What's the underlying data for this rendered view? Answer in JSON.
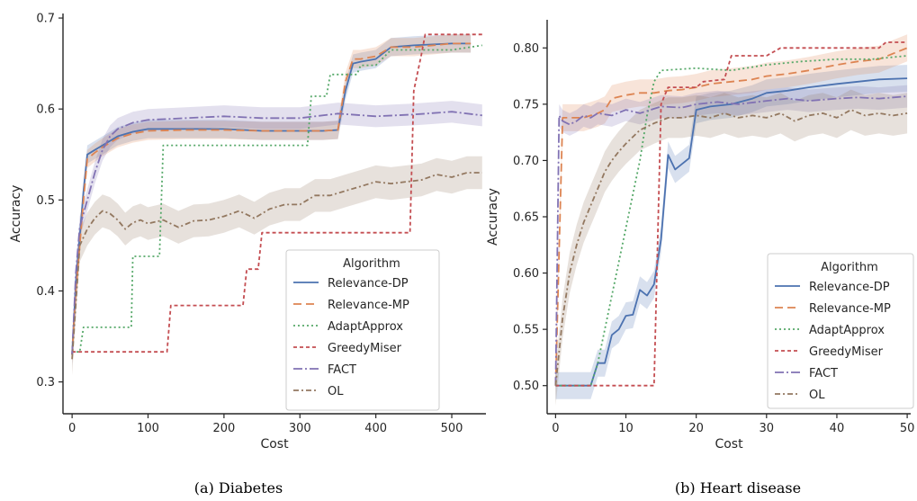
{
  "chart_data": [
    {
      "type": "line",
      "caption": "(a) Diabetes",
      "xlabel": "Cost",
      "ylabel": "Accuracy",
      "xlim": [
        -12,
        545
      ],
      "ylim": [
        0.265,
        0.705
      ],
      "xticks": [
        0,
        100,
        200,
        300,
        400,
        500
      ],
      "yticks": [
        0.3,
        0.4,
        0.5,
        0.6,
        0.7
      ],
      "xtick_labels": [
        "0",
        "100",
        "200",
        "300",
        "400",
        "500"
      ],
      "ytick_labels": [
        "0.3",
        "0.4",
        "0.5",
        "0.6",
        "0.7"
      ],
      "legend": {
        "title": "Algorithm",
        "position": "lower-right"
      },
      "series": [
        {
          "name": "Relevance-DP",
          "color": "#4c72b0",
          "dash": "",
          "x": [
            0,
            5,
            10,
            15,
            20,
            30,
            40,
            50,
            60,
            80,
            100,
            150,
            200,
            250,
            300,
            330,
            350,
            360,
            370,
            380,
            400,
            420,
            450,
            500,
            525
          ],
          "y": [
            0.33,
            0.41,
            0.46,
            0.51,
            0.55,
            0.555,
            0.56,
            0.565,
            0.57,
            0.575,
            0.578,
            0.578,
            0.578,
            0.576,
            0.576,
            0.576,
            0.577,
            0.62,
            0.65,
            0.652,
            0.655,
            0.668,
            0.67,
            0.672,
            0.672
          ],
          "band": 0.01
        },
        {
          "name": "Relevance-MP",
          "color": "#dd8452",
          "dash": "9,5",
          "x": [
            0,
            5,
            10,
            15,
            20,
            30,
            40,
            50,
            60,
            80,
            100,
            150,
            200,
            250,
            300,
            330,
            350,
            360,
            370,
            380,
            400,
            420,
            450,
            500,
            525
          ],
          "y": [
            0.33,
            0.4,
            0.45,
            0.5,
            0.545,
            0.552,
            0.558,
            0.563,
            0.568,
            0.573,
            0.576,
            0.577,
            0.577,
            0.576,
            0.576,
            0.576,
            0.577,
            0.63,
            0.655,
            0.655,
            0.658,
            0.668,
            0.668,
            0.672,
            0.672
          ],
          "band": 0.01
        },
        {
          "name": "AdaptApprox",
          "color": "#55a868",
          "dash": "2,3",
          "x": [
            0,
            10,
            15,
            25,
            50,
            78,
            80,
            100,
            115,
            120,
            200,
            310,
            315,
            335,
            340,
            375,
            380,
            400,
            420,
            450,
            500,
            540
          ],
          "y": [
            0.333,
            0.333,
            0.36,
            0.36,
            0.36,
            0.36,
            0.438,
            0.438,
            0.438,
            0.56,
            0.56,
            0.56,
            0.614,
            0.614,
            0.638,
            0.638,
            0.648,
            0.648,
            0.665,
            0.665,
            0.665,
            0.67
          ],
          "band": 0
        },
        {
          "name": "GreedyMiser",
          "color": "#c44e52",
          "dash": "4,3",
          "x": [
            0,
            125,
            130,
            225,
            230,
            245,
            250,
            445,
            450,
            460,
            465,
            540
          ],
          "y": [
            0.333,
            0.333,
            0.384,
            0.384,
            0.424,
            0.424,
            0.464,
            0.464,
            0.62,
            0.66,
            0.682,
            0.682
          ],
          "band": 0
        },
        {
          "name": "FACT",
          "color": "#8172b3",
          "dash": "10,3,2,3",
          "x": [
            0,
            5,
            10,
            20,
            30,
            40,
            50,
            60,
            80,
            100,
            150,
            200,
            250,
            300,
            350,
            400,
            450,
            500,
            540
          ],
          "y": [
            0.33,
            0.42,
            0.47,
            0.5,
            0.53,
            0.555,
            0.57,
            0.578,
            0.585,
            0.588,
            0.59,
            0.592,
            0.59,
            0.59,
            0.595,
            0.592,
            0.594,
            0.597,
            0.593
          ],
          "band": 0.012
        },
        {
          "name": "OL",
          "color": "#937860",
          "dash": "6,3,2,3",
          "x": [
            0,
            10,
            20,
            30,
            40,
            50,
            60,
            70,
            80,
            90,
            100,
            120,
            140,
            160,
            180,
            200,
            220,
            240,
            260,
            280,
            300,
            320,
            340,
            360,
            380,
            400,
            420,
            440,
            460,
            480,
            500,
            520,
            540
          ],
          "y": [
            0.325,
            0.45,
            0.468,
            0.48,
            0.488,
            0.485,
            0.478,
            0.468,
            0.475,
            0.478,
            0.474,
            0.478,
            0.47,
            0.477,
            0.478,
            0.482,
            0.488,
            0.48,
            0.49,
            0.495,
            0.495,
            0.505,
            0.505,
            0.51,
            0.515,
            0.52,
            0.518,
            0.52,
            0.522,
            0.528,
            0.525,
            0.53,
            0.53
          ],
          "band": 0.018
        }
      ]
    },
    {
      "type": "line",
      "caption": "(b) Heart disease",
      "xlabel": "Cost",
      "ylabel": "Accuracy",
      "xlim": [
        -1.2,
        50.5
      ],
      "ylim": [
        0.475,
        0.825
      ],
      "xticks": [
        0,
        10,
        20,
        30,
        40,
        50
      ],
      "yticks": [
        0.5,
        0.55,
        0.6,
        0.65,
        0.7,
        0.75,
        0.8
      ],
      "xtick_labels": [
        "0",
        "10",
        "20",
        "30",
        "40",
        "50"
      ],
      "ytick_labels": [
        "0.50",
        "0.55",
        "0.60",
        "0.65",
        "0.70",
        "0.75",
        "0.80"
      ],
      "legend": {
        "title": "Algorithm",
        "position": "lower-right"
      },
      "series": [
        {
          "name": "Relevance-DP",
          "color": "#4c72b0",
          "dash": "",
          "x": [
            0,
            1,
            2,
            3,
            4,
            5,
            6,
            7,
            8,
            9,
            10,
            11,
            12,
            13,
            14,
            15,
            16,
            17,
            18,
            19,
            20,
            22,
            25,
            28,
            30,
            33,
            36,
            40,
            43,
            46,
            50
          ],
          "y": [
            0.5,
            0.5,
            0.5,
            0.5,
            0.5,
            0.5,
            0.52,
            0.52,
            0.545,
            0.55,
            0.562,
            0.563,
            0.585,
            0.58,
            0.59,
            0.63,
            0.705,
            0.692,
            0.697,
            0.702,
            0.745,
            0.748,
            0.75,
            0.755,
            0.76,
            0.762,
            0.765,
            0.768,
            0.77,
            0.772,
            0.773
          ],
          "band": 0.012
        },
        {
          "name": "Relevance-MP",
          "color": "#dd8452",
          "dash": "9,5",
          "x": [
            0,
            1,
            2,
            3,
            4,
            5,
            6,
            7,
            8,
            10,
            12,
            14,
            16,
            18,
            20,
            22,
            25,
            28,
            30,
            33,
            36,
            40,
            43,
            46,
            50
          ],
          "y": [
            0.5,
            0.738,
            0.738,
            0.738,
            0.738,
            0.74,
            0.742,
            0.745,
            0.755,
            0.758,
            0.76,
            0.76,
            0.762,
            0.763,
            0.765,
            0.768,
            0.77,
            0.772,
            0.775,
            0.777,
            0.78,
            0.785,
            0.788,
            0.79,
            0.8
          ],
          "band": 0.012
        },
        {
          "name": "AdaptApprox",
          "color": "#55a868",
          "dash": "2,3",
          "x": [
            0,
            1,
            2,
            3,
            4,
            5,
            6,
            8,
            10,
            12,
            13,
            14,
            15,
            20,
            25,
            30,
            35,
            40,
            45,
            50
          ],
          "y": [
            0.5,
            0.5,
            0.5,
            0.5,
            0.5,
            0.5,
            0.52,
            0.58,
            0.64,
            0.7,
            0.74,
            0.77,
            0.78,
            0.782,
            0.78,
            0.785,
            0.788,
            0.79,
            0.79,
            0.793
          ],
          "band": 0
        },
        {
          "name": "GreedyMiser",
          "color": "#c44e52",
          "dash": "4,3",
          "x": [
            0,
            14,
            15,
            16,
            20,
            21,
            24,
            25,
            30,
            32,
            40,
            46,
            47,
            50
          ],
          "y": [
            0.5,
            0.5,
            0.75,
            0.765,
            0.765,
            0.77,
            0.772,
            0.793,
            0.793,
            0.8,
            0.8,
            0.8,
            0.805,
            0.805
          ],
          "band": 0
        },
        {
          "name": "FACT",
          "color": "#8172b3",
          "dash": "10,3,2,3",
          "x": [
            0,
            0.5,
            1,
            2,
            3,
            4,
            5,
            6,
            8,
            10,
            12,
            15,
            18,
            20,
            23,
            26,
            30,
            33,
            36,
            40,
            43,
            46,
            50
          ],
          "y": [
            0.5,
            0.74,
            0.735,
            0.732,
            0.735,
            0.74,
            0.738,
            0.742,
            0.74,
            0.745,
            0.742,
            0.748,
            0.747,
            0.75,
            0.752,
            0.75,
            0.753,
            0.755,
            0.753,
            0.755,
            0.756,
            0.755,
            0.757
          ],
          "band": 0.01
        },
        {
          "name": "OL",
          "color": "#937860",
          "dash": "6,3,2,3",
          "x": [
            0,
            1,
            2,
            3,
            4,
            5,
            6,
            7,
            8,
            9,
            10,
            12,
            14,
            16,
            18,
            20,
            22,
            24,
            26,
            28,
            30,
            32,
            34,
            36,
            38,
            40,
            42,
            44,
            46,
            48,
            50
          ],
          "y": [
            0.5,
            0.56,
            0.6,
            0.625,
            0.645,
            0.66,
            0.675,
            0.69,
            0.7,
            0.708,
            0.715,
            0.727,
            0.733,
            0.738,
            0.738,
            0.74,
            0.738,
            0.742,
            0.738,
            0.74,
            0.738,
            0.742,
            0.735,
            0.74,
            0.742,
            0.738,
            0.745,
            0.74,
            0.742,
            0.74,
            0.742
          ],
          "band": 0.018
        }
      ]
    }
  ]
}
